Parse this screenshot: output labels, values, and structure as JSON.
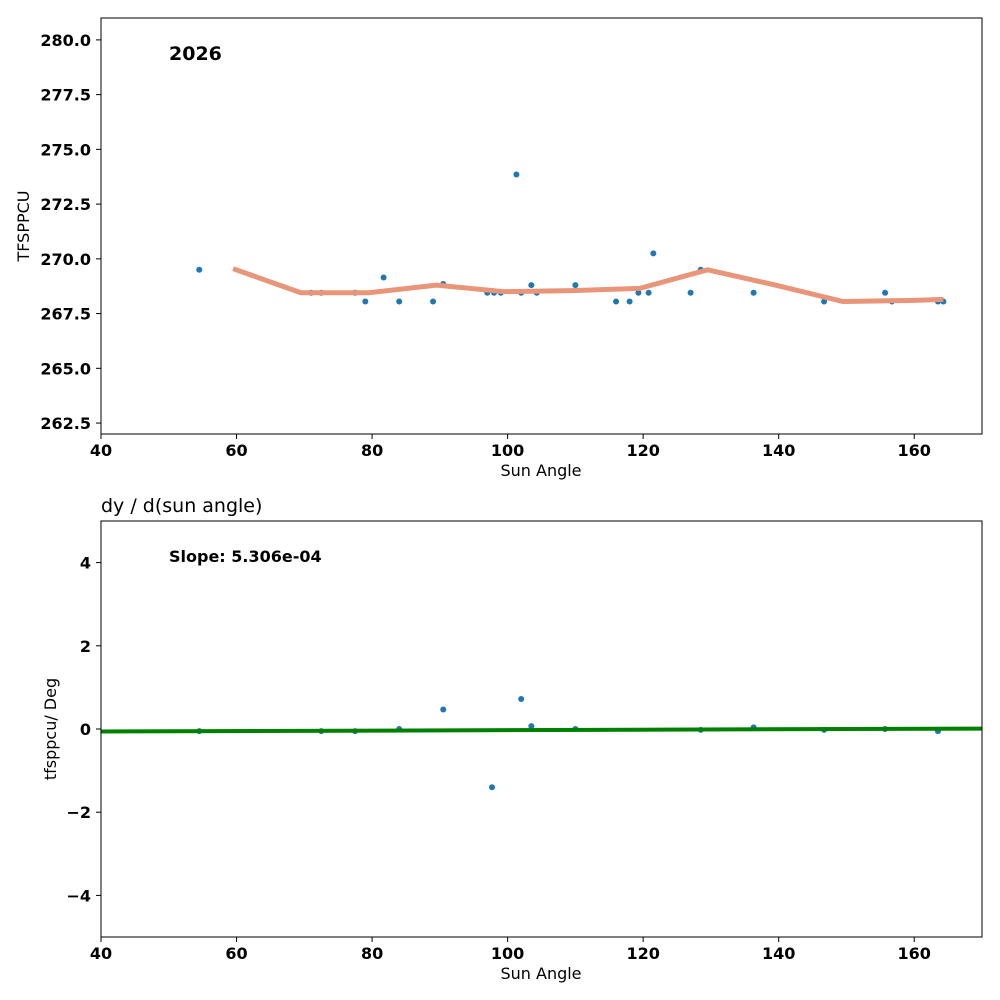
{
  "chart_data": [
    {
      "type": "scatter",
      "annotation": "2026",
      "xlabel": "Sun Angle",
      "ylabel": "TFSPPCU",
      "xlim": [
        40,
        170
      ],
      "ylim": [
        262,
        281
      ],
      "x_ticks": [
        40,
        60,
        80,
        100,
        120,
        140,
        160
      ],
      "y_ticks": [
        262.5,
        265.0,
        267.5,
        270.0,
        272.5,
        275.0,
        277.5,
        280.0
      ],
      "y_tick_labels": [
        "262.5",
        "265.0",
        "267.5",
        "270.0",
        "272.5",
        "275.0",
        "277.5",
        "280.0"
      ],
      "grid": false,
      "colors": {
        "points": "#1f77b4",
        "smooth": "#e8957a"
      },
      "series": [
        {
          "kind": "points",
          "x": [
            54.5,
            71,
            72.5,
            77.5,
            79,
            81.7,
            84,
            89,
            90.5,
            97,
            98,
            99,
            102,
            103.5,
            104.3,
            110,
            116,
            118,
            119.3,
            120.8,
            121.5,
            127,
            128.5,
            136.3,
            146.7,
            155.7,
            156.7,
            163.5,
            164.3
          ],
          "y": [
            269.5,
            268.45,
            268.45,
            268.45,
            268.05,
            269.15,
            268.05,
            268.05,
            268.85,
            268.45,
            268.45,
            268.45,
            268.45,
            268.8,
            268.45,
            268.8,
            268.05,
            268.05,
            268.45,
            268.45,
            270.25,
            268.45,
            269.5,
            268.45,
            268.05,
            268.45,
            268.05,
            268.05,
            268.05
          ]
        },
        {
          "kind": "points",
          "x": [
            101.3
          ],
          "y": [
            273.85
          ]
        },
        {
          "kind": "line",
          "x": [
            59.5,
            69.5,
            79.5,
            89.5,
            99.5,
            109.5,
            119.5,
            129.5,
            139.5,
            149.5,
            159.5,
            164.3
          ],
          "y": [
            269.55,
            268.45,
            268.45,
            268.8,
            268.5,
            268.55,
            268.65,
            269.5,
            268.8,
            268.05,
            268.1,
            268.15
          ]
        }
      ]
    },
    {
      "type": "scatter",
      "title": "dy / d(sun angle)",
      "annotation": "Slope: 5.306e-04",
      "xlabel": "Sun Angle",
      "ylabel": "tfsppcu/ Deg",
      "xlim": [
        40,
        170
      ],
      "ylim": [
        -5,
        5
      ],
      "x_ticks": [
        40,
        60,
        80,
        100,
        120,
        140,
        160
      ],
      "y_ticks": [
        -4,
        -2,
        0,
        2,
        4
      ],
      "y_tick_labels": [
        "−4",
        "−2",
        "0",
        "2",
        "4"
      ],
      "grid": false,
      "colors": {
        "points": "#1f77b4",
        "fit": "#008000"
      },
      "series": [
        {
          "kind": "points",
          "x": [
            54.5,
            72.5,
            77.5,
            84,
            90.5,
            97.7,
            102,
            103.5,
            110,
            128.5,
            136.3,
            146.7,
            155.7,
            163.5
          ],
          "y": [
            -0.05,
            -0.05,
            -0.05,
            0.0,
            0.47,
            -1.4,
            0.72,
            0.07,
            0.0,
            -0.02,
            0.04,
            -0.02,
            0.0,
            -0.05
          ]
        },
        {
          "kind": "line",
          "x": [
            40,
            170
          ],
          "y": [
            -0.06,
            0.01
          ]
        }
      ]
    }
  ]
}
